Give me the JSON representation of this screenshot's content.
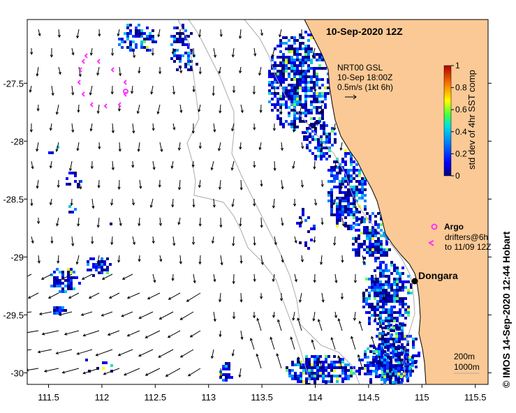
{
  "title": "10-Sep-2020 12Z",
  "current_label": {
    "line1": "NRT00 GSL",
    "line2": "10-Sep 18:00Z",
    "line3": "0.5m/s (1kt 6h)"
  },
  "colorbar": {
    "label": "std dev of 4hr SST comp",
    "ticks": [
      "1",
      "0.8",
      "0.6",
      "0.4",
      "0.2",
      "0"
    ]
  },
  "legend": {
    "argo_label": "Argo",
    "drifters_line1": "drifters@6h",
    "drifters_line2": "to 11/09 12Z"
  },
  "place": "Dongara",
  "isobaths": {
    "label_200": "200m",
    "label_1000": "1000m"
  },
  "credit": "© IMOS 14-Sep-2020 12:44 Hobart",
  "axes": {
    "x_ticks": [
      "111.5",
      "112",
      "112.5",
      "113",
      "113.5",
      "114",
      "114.5",
      "115",
      "115.5"
    ],
    "y_ticks": [
      "-27.5",
      "-28",
      "-28.5",
      "-29",
      "-29.5",
      "-30"
    ],
    "x_range": [
      111.3,
      115.62
    ],
    "y_range": [
      -30.1,
      -26.95
    ]
  },
  "colors": {
    "land": "#fbc995",
    "argo": "#ff33ff",
    "isobath": "#aaaaaa"
  }
}
